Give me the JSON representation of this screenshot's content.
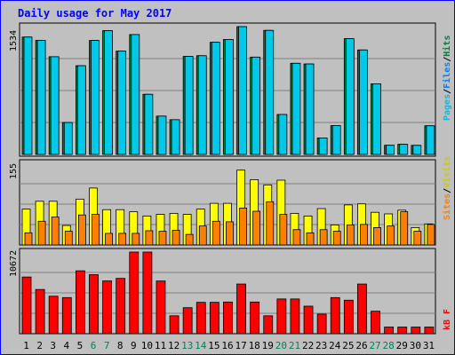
{
  "chart_data": {
    "title": "Daily usage for May 2017",
    "type": "bar",
    "categories": [
      "1",
      "2",
      "3",
      "4",
      "5",
      "6",
      "7",
      "8",
      "9",
      "10",
      "11",
      "12",
      "13",
      "14",
      "15",
      "16",
      "17",
      "18",
      "19",
      "20",
      "21",
      "22",
      "23",
      "24",
      "25",
      "26",
      "27",
      "28",
      "29",
      "30",
      "31"
    ],
    "weekend_days": [
      "6",
      "7",
      "13",
      "14",
      "20",
      "21",
      "27",
      "28"
    ],
    "panels": [
      {
        "id": "hits_files_pages",
        "max_label": "1534",
        "ylim": [
          0,
          1534
        ],
        "legend": [
          "Pages",
          "/",
          "Files",
          "/",
          "Hits"
        ],
        "series": [
          {
            "name": "Hits",
            "color": "#008040",
            "values": [
              1409,
              1369,
              1173,
              383,
              1065,
              1368,
              1486,
              1240,
              1439,
              722,
              460,
              417,
              1177,
              1185,
              1346,
              1380,
              1534,
              1168,
              1489,
              480,
              1094,
              1086,
              198,
              346,
              1390,
              1254,
              848,
              110,
              122,
              109,
              344
            ]
          },
          {
            "name": "Files",
            "color": "#00c8e8",
            "values": [
              1409,
              1369,
              1173,
              383,
              1065,
              1368,
              1486,
              1240,
              1439,
              722,
              460,
              417,
              1177,
              1185,
              1346,
              1380,
              1534,
              1168,
              1489,
              480,
              1094,
              1086,
              198,
              346,
              1390,
              1254,
              848,
              110,
              122,
              109,
              344
            ]
          },
          {
            "name": "Pages",
            "color": "#00c0e0",
            "values": [
              1409,
              1369,
              1173,
              383,
              1065,
              1368,
              1486,
              1240,
              1439,
              722,
              460,
              417,
              1177,
              1185,
              1346,
              1380,
              1534,
              1168,
              1489,
              480,
              1094,
              1086,
              198,
              346,
              1390,
              1254,
              848,
              110,
              122,
              109,
              344
            ]
          }
        ]
      },
      {
        "id": "visits_sites",
        "max_label": "155",
        "ylim": [
          0,
          155
        ],
        "legend": [
          "Sites",
          "/",
          "Visits"
        ],
        "series": [
          {
            "name": "Visits",
            "color": "#ffff00",
            "values": [
              68,
              83,
              83,
              37,
              87,
              108,
              67,
              67,
              63,
              55,
              58,
              60,
              58,
              68,
              79,
              79,
              142,
              124,
              114,
              123,
              60,
              55,
              69,
              38,
              76,
              78,
              62,
              59,
              66,
              33,
              40
            ]
          },
          {
            "name": "Sites",
            "color": "#ff8000",
            "values": [
              23,
              45,
              53,
              26,
              57,
              58,
              22,
              22,
              22,
              27,
              26,
              28,
              20,
              36,
              45,
              44,
              70,
              64,
              82,
              58,
              29,
              23,
              29,
              26,
              38,
              39,
              33,
              36,
              63,
              26,
              39
            ]
          }
        ]
      },
      {
        "id": "kbytes",
        "max_label": "10672",
        "ylim": [
          0,
          10672
        ],
        "legend": [
          "kB",
          "F"
        ],
        "series": [
          {
            "name": "kB F",
            "color": "#ff0000",
            "values": [
              7410,
              5780,
              4900,
              4720,
              8220,
              7720,
              6900,
              7230,
              10672,
              10672,
              6890,
              2340,
              3400,
              4100,
              4100,
              4140,
              6490,
              4140,
              2340,
              4540,
              4540,
              3600,
              2560,
              4720,
              4380,
              6490,
              2940,
              870,
              870,
              870,
              870
            ]
          }
        ]
      }
    ]
  },
  "colors": {
    "background": "#c0c0c0",
    "title": "#0000ff",
    "border": "#0000ff",
    "grid": "#808080",
    "axis_text": "#000000",
    "weekend_text": "#00805c",
    "bar_outline": "#000000"
  }
}
